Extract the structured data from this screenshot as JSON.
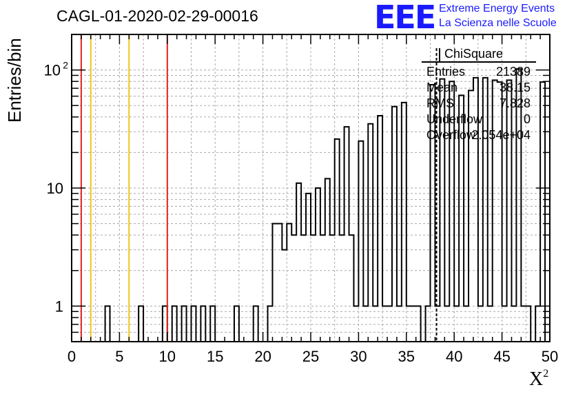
{
  "header": {
    "title": "CAGL-01-2020-02-29-00016"
  },
  "logo": {
    "mark": "EEE",
    "line1": "Extreme Energy Events",
    "line2": "La Scienza nelle Scuole"
  },
  "stats_box": {
    "title": "ChiSquare",
    "rows": [
      {
        "name": "Entries",
        "value": "21389"
      },
      {
        "name": "Mean",
        "value": "38.15"
      },
      {
        "name": "RMS",
        "value": "7.828"
      },
      {
        "name": "Underflow",
        "value": "0"
      },
      {
        "name": "Overflow",
        "value": "2.054e+04"
      }
    ]
  },
  "chart_data": {
    "type": "bar",
    "title": "CAGL-01-2020-02-29-00016",
    "xlabel": "X",
    "xlabel_sup": "2",
    "ylabel": "Entries/bin",
    "xlim": [
      0,
      50
    ],
    "ylim": [
      0.5,
      200
    ],
    "yscale": "log",
    "grid": true,
    "bin_width": 0.5,
    "x_ticks": [
      "0",
      "5",
      "10",
      "15",
      "20",
      "25",
      "30",
      "35",
      "40",
      "45",
      "50"
    ],
    "y_ticks": [
      {
        "value": 1,
        "label": "1",
        "sup": ""
      },
      {
        "value": 10,
        "label": "10",
        "sup": ""
      },
      {
        "value": 100,
        "label": "10",
        "sup": "2"
      }
    ],
    "bins": [
      [
        3.5,
        1
      ],
      [
        7.0,
        1
      ],
      [
        9.5,
        1
      ],
      [
        10.5,
        1
      ],
      [
        11.5,
        1
      ],
      [
        12.5,
        1
      ],
      [
        13.5,
        1
      ],
      [
        14.5,
        1
      ],
      [
        17.0,
        1
      ],
      [
        19.0,
        1
      ],
      [
        20.5,
        1
      ],
      [
        21.0,
        5
      ],
      [
        21.5,
        5
      ],
      [
        22.0,
        3
      ],
      [
        22.5,
        5
      ],
      [
        23.0,
        4
      ],
      [
        23.5,
        11
      ],
      [
        24.0,
        4
      ],
      [
        24.5,
        9
      ],
      [
        25.0,
        4
      ],
      [
        25.5,
        10
      ],
      [
        26.0,
        4
      ],
      [
        26.5,
        12
      ],
      [
        27.0,
        4
      ],
      [
        27.5,
        26
      ],
      [
        28.0,
        4
      ],
      [
        28.5,
        33
      ],
      [
        29.0,
        4
      ],
      [
        29.5,
        1
      ],
      [
        30.0,
        25
      ],
      [
        30.5,
        1
      ],
      [
        31.0,
        35
      ],
      [
        31.5,
        1
      ],
      [
        32.0,
        41
      ],
      [
        32.5,
        1
      ],
      [
        33.0,
        1
      ],
      [
        33.5,
        49
      ],
      [
        34.0,
        1
      ],
      [
        34.5,
        53
      ],
      [
        35.0,
        1
      ],
      [
        35.5,
        1
      ],
      [
        36.0,
        1
      ],
      [
        37.0,
        1
      ],
      [
        37.5,
        75
      ],
      [
        38.0,
        1
      ],
      [
        38.5,
        84
      ],
      [
        39.0,
        1
      ],
      [
        39.5,
        80
      ],
      [
        40.0,
        1
      ],
      [
        40.5,
        61
      ],
      [
        41.0,
        1
      ],
      [
        41.5,
        67
      ],
      [
        42.0,
        86
      ],
      [
        42.5,
        1
      ],
      [
        43.0,
        86
      ],
      [
        43.5,
        1
      ],
      [
        44.0,
        82
      ],
      [
        44.5,
        79
      ],
      [
        45.0,
        1
      ],
      [
        45.5,
        82
      ],
      [
        46.0,
        1
      ],
      [
        46.5,
        102
      ],
      [
        47.0,
        1
      ],
      [
        47.5,
        1
      ],
      [
        48.5,
        1
      ],
      [
        49.0,
        79
      ]
    ],
    "vlines": [
      {
        "x": 1,
        "color": "#e0201a"
      },
      {
        "x": 2,
        "color": "#f0c419"
      },
      {
        "x": 6,
        "color": "#f0c419"
      },
      {
        "x": 10,
        "color": "#e0201a"
      }
    ],
    "mean_line": {
      "x": 38.15,
      "style": "dashed",
      "color": "#000000"
    }
  }
}
